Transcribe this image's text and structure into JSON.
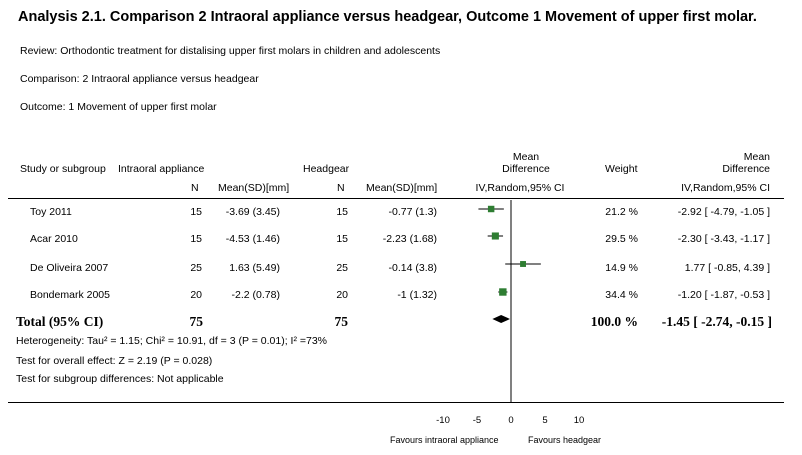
{
  "title": "Analysis 2.1.   Comparison 2 Intraoral appliance versus headgear, Outcome 1 Movement of upper first molar.",
  "review": "Review:   Orthodontic treatment for distalising upper first molars in children and adolescents",
  "comparison": "Comparison:   2 Intraoral appliance versus headgear",
  "outcome": "Outcome:   1 Movement of upper first molar",
  "headers": {
    "study": "Study or subgroup",
    "group1": "Intraoral appliance",
    "n1": "N",
    "mean1": "Mean(SD)[mm]",
    "group2": "Headgear",
    "n2": "N",
    "mean2": "Mean(SD)[mm]",
    "md_line1": "Mean",
    "md_line2": "Difference",
    "md_line3": "IV,Random,95% CI",
    "weight": "Weight",
    "md2_line1": "Mean",
    "md2_line2": "Difference",
    "md2_line3": "IV,Random,95% CI"
  },
  "rows": [
    {
      "study": "Toy 2011",
      "n1": "15",
      "mean1": "-3.69 (3.45)",
      "n2": "15",
      "mean2": "-0.77 (1.3)",
      "weight": "21.2 %",
      "ci": "-2.92 [ -4.79, -1.05 ]"
    },
    {
      "study": "Acar 2010",
      "n1": "15",
      "mean1": "-4.53 (1.46)",
      "n2": "15",
      "mean2": "-2.23 (1.68)",
      "weight": "29.5 %",
      "ci": "-2.30 [ -3.43, -1.17 ]"
    },
    {
      "study": "De Oliveira 2007",
      "n1": "25",
      "mean1": "1.63 (5.49)",
      "n2": "25",
      "mean2": "-0.14 (3.8)",
      "weight": "14.9 %",
      "ci": "1.77 [ -0.85, 4.39 ]"
    },
    {
      "study": "Bondemark 2005",
      "n1": "20",
      "mean1": "-2.2 (0.78)",
      "n2": "20",
      "mean2": "-1 (1.32)",
      "weight": "34.4 %",
      "ci": "-1.20 [ -1.87, -0.53 ]"
    }
  ],
  "total": {
    "label": "Total (95% CI)",
    "n1": "75",
    "n2": "75",
    "weight": "100.0 %",
    "ci": "-1.45 [ -2.74, -0.15 ]"
  },
  "heterogeneity": "Heterogeneity: Tau² = 1.15; Chi² = 10.91, df = 3 (P = 0.01); I² =73%",
  "overall_effect": "Test for overall effect: Z = 2.19 (P = 0.028)",
  "subgroup_diff": "Test for subgroup differences: Not applicable",
  "axis": {
    "tick_labels": [
      "-10",
      "-5",
      "0",
      "5",
      "10"
    ],
    "favours_left": "Favours intraoral appliance",
    "favours_right": "Favours headgear"
  },
  "colors": {
    "marker": "#2e7d32",
    "line": "#000000"
  },
  "chart_data": {
    "type": "forest",
    "xlim": [
      -10,
      10
    ],
    "ticks": [
      -10,
      -5,
      0,
      5,
      10
    ],
    "studies": [
      {
        "name": "Toy 2011",
        "md": -2.92,
        "lo": -4.79,
        "hi": -1.05,
        "weight": 21.2
      },
      {
        "name": "Acar 2010",
        "md": -2.3,
        "lo": -3.43,
        "hi": -1.17,
        "weight": 29.5
      },
      {
        "name": "De Oliveira 2007",
        "md": 1.77,
        "lo": -0.85,
        "hi": 4.39,
        "weight": 14.9
      },
      {
        "name": "Bondemark 2005",
        "md": -1.2,
        "lo": -1.87,
        "hi": -0.53,
        "weight": 34.4
      }
    ],
    "pooled": {
      "md": -1.45,
      "lo": -2.74,
      "hi": -0.15
    }
  }
}
